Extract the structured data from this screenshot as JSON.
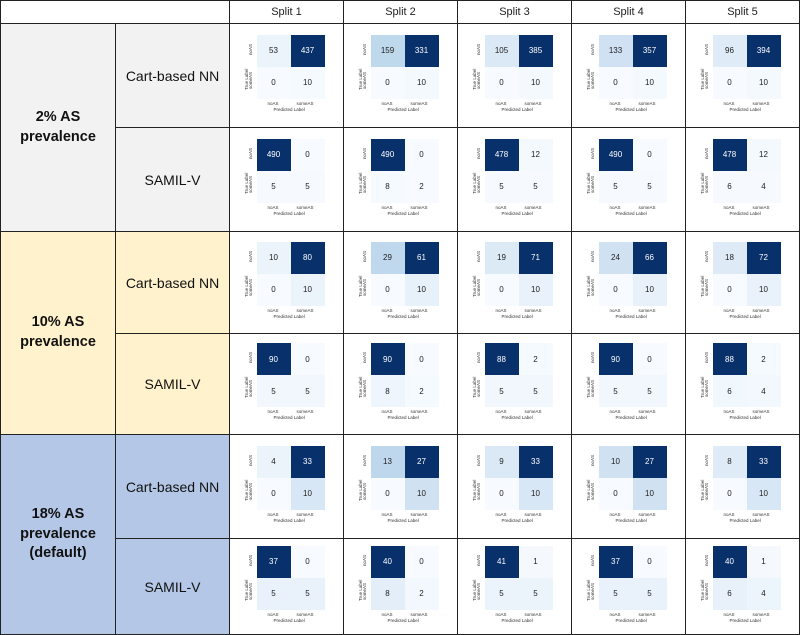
{
  "colors": {
    "group_2pct": "#f2f2f2",
    "group_10pct": "#fff2cc",
    "group_18pct": "#b4c7e7"
  },
  "headers": [
    "Split 1",
    "Split 2",
    "Split 3",
    "Split 4",
    "Split 5"
  ],
  "axis": {
    "true_label": "True Label",
    "predicted_label": "Predicted Label",
    "class_0": "noAS",
    "class_1": "someAS"
  },
  "groups": [
    {
      "label": "2% AS\nprevalence",
      "bg": "#f2f2f2",
      "rows": [
        {
          "model": "Cart-based NN",
          "matrices": [
            [
              [
                53,
                437
              ],
              [
                0,
                10
              ]
            ],
            [
              [
                159,
                331
              ],
              [
                0,
                10
              ]
            ],
            [
              [
                105,
                385
              ],
              [
                0,
                10
              ]
            ],
            [
              [
                133,
                357
              ],
              [
                0,
                10
              ]
            ],
            [
              [
                96,
                394
              ],
              [
                0,
                10
              ]
            ]
          ]
        },
        {
          "model": "SAMIL-V",
          "matrices": [
            [
              [
                490,
                0
              ],
              [
                5,
                5
              ]
            ],
            [
              [
                490,
                0
              ],
              [
                8,
                2
              ]
            ],
            [
              [
                478,
                12
              ],
              [
                5,
                5
              ]
            ],
            [
              [
                490,
                0
              ],
              [
                5,
                5
              ]
            ],
            [
              [
                478,
                12
              ],
              [
                6,
                4
              ]
            ]
          ]
        }
      ]
    },
    {
      "label": "10% AS\nprevalence",
      "bg": "#fff2cc",
      "rows": [
        {
          "model": "Cart-based NN",
          "matrices": [
            [
              [
                10,
                80
              ],
              [
                0,
                10
              ]
            ],
            [
              [
                29,
                61
              ],
              [
                0,
                10
              ]
            ],
            [
              [
                19,
                71
              ],
              [
                0,
                10
              ]
            ],
            [
              [
                24,
                66
              ],
              [
                0,
                10
              ]
            ],
            [
              [
                18,
                72
              ],
              [
                0,
                10
              ]
            ]
          ]
        },
        {
          "model": "SAMIL-V",
          "matrices": [
            [
              [
                90,
                0
              ],
              [
                5,
                5
              ]
            ],
            [
              [
                90,
                0
              ],
              [
                8,
                2
              ]
            ],
            [
              [
                88,
                2
              ],
              [
                5,
                5
              ]
            ],
            [
              [
                90,
                0
              ],
              [
                5,
                5
              ]
            ],
            [
              [
                88,
                2
              ],
              [
                6,
                4
              ]
            ]
          ]
        }
      ]
    },
    {
      "label": "18% AS\nprevalence\n(default)",
      "bg": "#b4c7e7",
      "rows": [
        {
          "model": "Cart-based NN",
          "matrices": [
            [
              [
                4,
                33
              ],
              [
                0,
                10
              ]
            ],
            [
              [
                13,
                27
              ],
              [
                0,
                10
              ]
            ],
            [
              [
                9,
                33
              ],
              [
                0,
                10
              ]
            ],
            [
              [
                10,
                27
              ],
              [
                0,
                10
              ]
            ],
            [
              [
                8,
                33
              ],
              [
                0,
                10
              ]
            ]
          ]
        },
        {
          "model": "SAMIL-V",
          "matrices": [
            [
              [
                37,
                0
              ],
              [
                5,
                5
              ]
            ],
            [
              [
                40,
                0
              ],
              [
                8,
                2
              ]
            ],
            [
              [
                41,
                1
              ],
              [
                5,
                5
              ]
            ],
            [
              [
                37,
                0
              ],
              [
                5,
                5
              ]
            ],
            [
              [
                40,
                1
              ],
              [
                6,
                4
              ]
            ]
          ]
        }
      ]
    }
  ]
}
